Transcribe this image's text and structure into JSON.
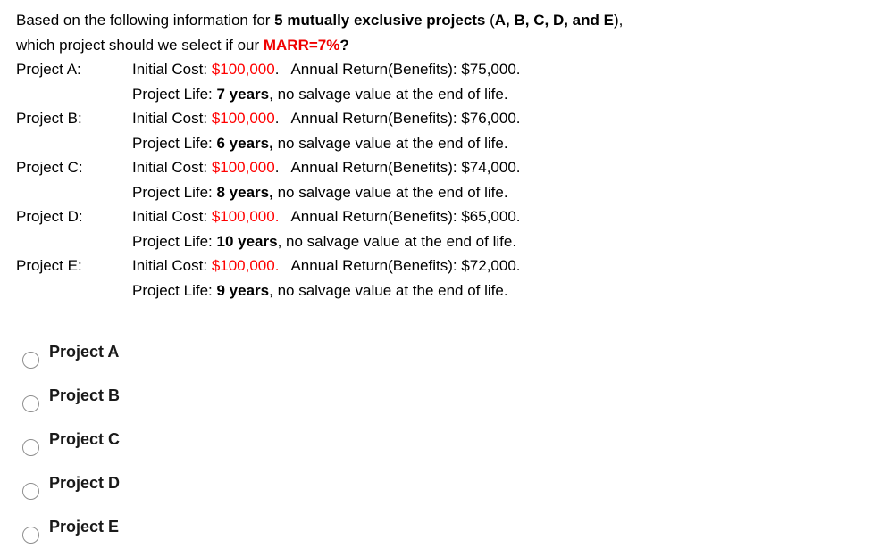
{
  "colors": {
    "accent_red": "#ff0000",
    "text": "#000000",
    "option_text": "#1a1a1a",
    "radio_border": "#8f8f8f",
    "background": "#ffffff"
  },
  "intro": {
    "line1_pre": "Based on the following information for ",
    "line1_bold1": "5 mutually exclusive projects",
    "line1_mid": " (",
    "line1_bold2": "A, B, C, D, and E",
    "line1_post": "),",
    "line2_pre": "which project should we select if our ",
    "line2_marr": "MARR=7%",
    "line2_qmark": "?"
  },
  "projects": [
    {
      "label": "Project A:",
      "cost_label": "Initial Cost: ",
      "cost_red": "$100,000",
      "cost_after": ".",
      "annual": "Annual Return(Benefits): $75,000.",
      "life_label": "Project Life: ",
      "life_bold": "7 years",
      "life_rest": ", no salvage value at the end of life."
    },
    {
      "label": "Project B:",
      "cost_label": "Initial Cost: ",
      "cost_red": "$100,000",
      "cost_after": ".",
      "annual": "Annual Return(Benefits): $76,000.",
      "life_label": "Project Life: ",
      "life_bold": "6 years,",
      "life_rest": " no salvage value at the end of life."
    },
    {
      "label": "Project C:",
      "cost_label": "Initial Cost: ",
      "cost_red": "$100,000",
      "cost_after": ".",
      "annual": "Annual Return(Benefits): $74,000.",
      "life_label": "Project Life: ",
      "life_bold": "8 years,",
      "life_rest": " no salvage value at the end of life."
    },
    {
      "label": "Project D:",
      "cost_label": "Initial Cost: ",
      "cost_red": "$100,000.",
      "cost_after": "",
      "annual": "Annual Return(Benefits): $65,000.",
      "life_label": "Project Life: ",
      "life_bold": "10 years",
      "life_rest": ", no salvage value at the end of life."
    },
    {
      "label": "Project E:",
      "cost_label": "Initial Cost: ",
      "cost_red": "$100,000.",
      "cost_after": "",
      "annual": "Annual Return(Benefits): $72,000.",
      "life_label": "Project Life: ",
      "life_bold": "9 years",
      "life_rest": ", no salvage value at the end of life."
    }
  ],
  "options": [
    {
      "label": "Project A"
    },
    {
      "label": "Project B"
    },
    {
      "label": "Project C"
    },
    {
      "label": "Project D"
    },
    {
      "label": "Project E"
    }
  ]
}
